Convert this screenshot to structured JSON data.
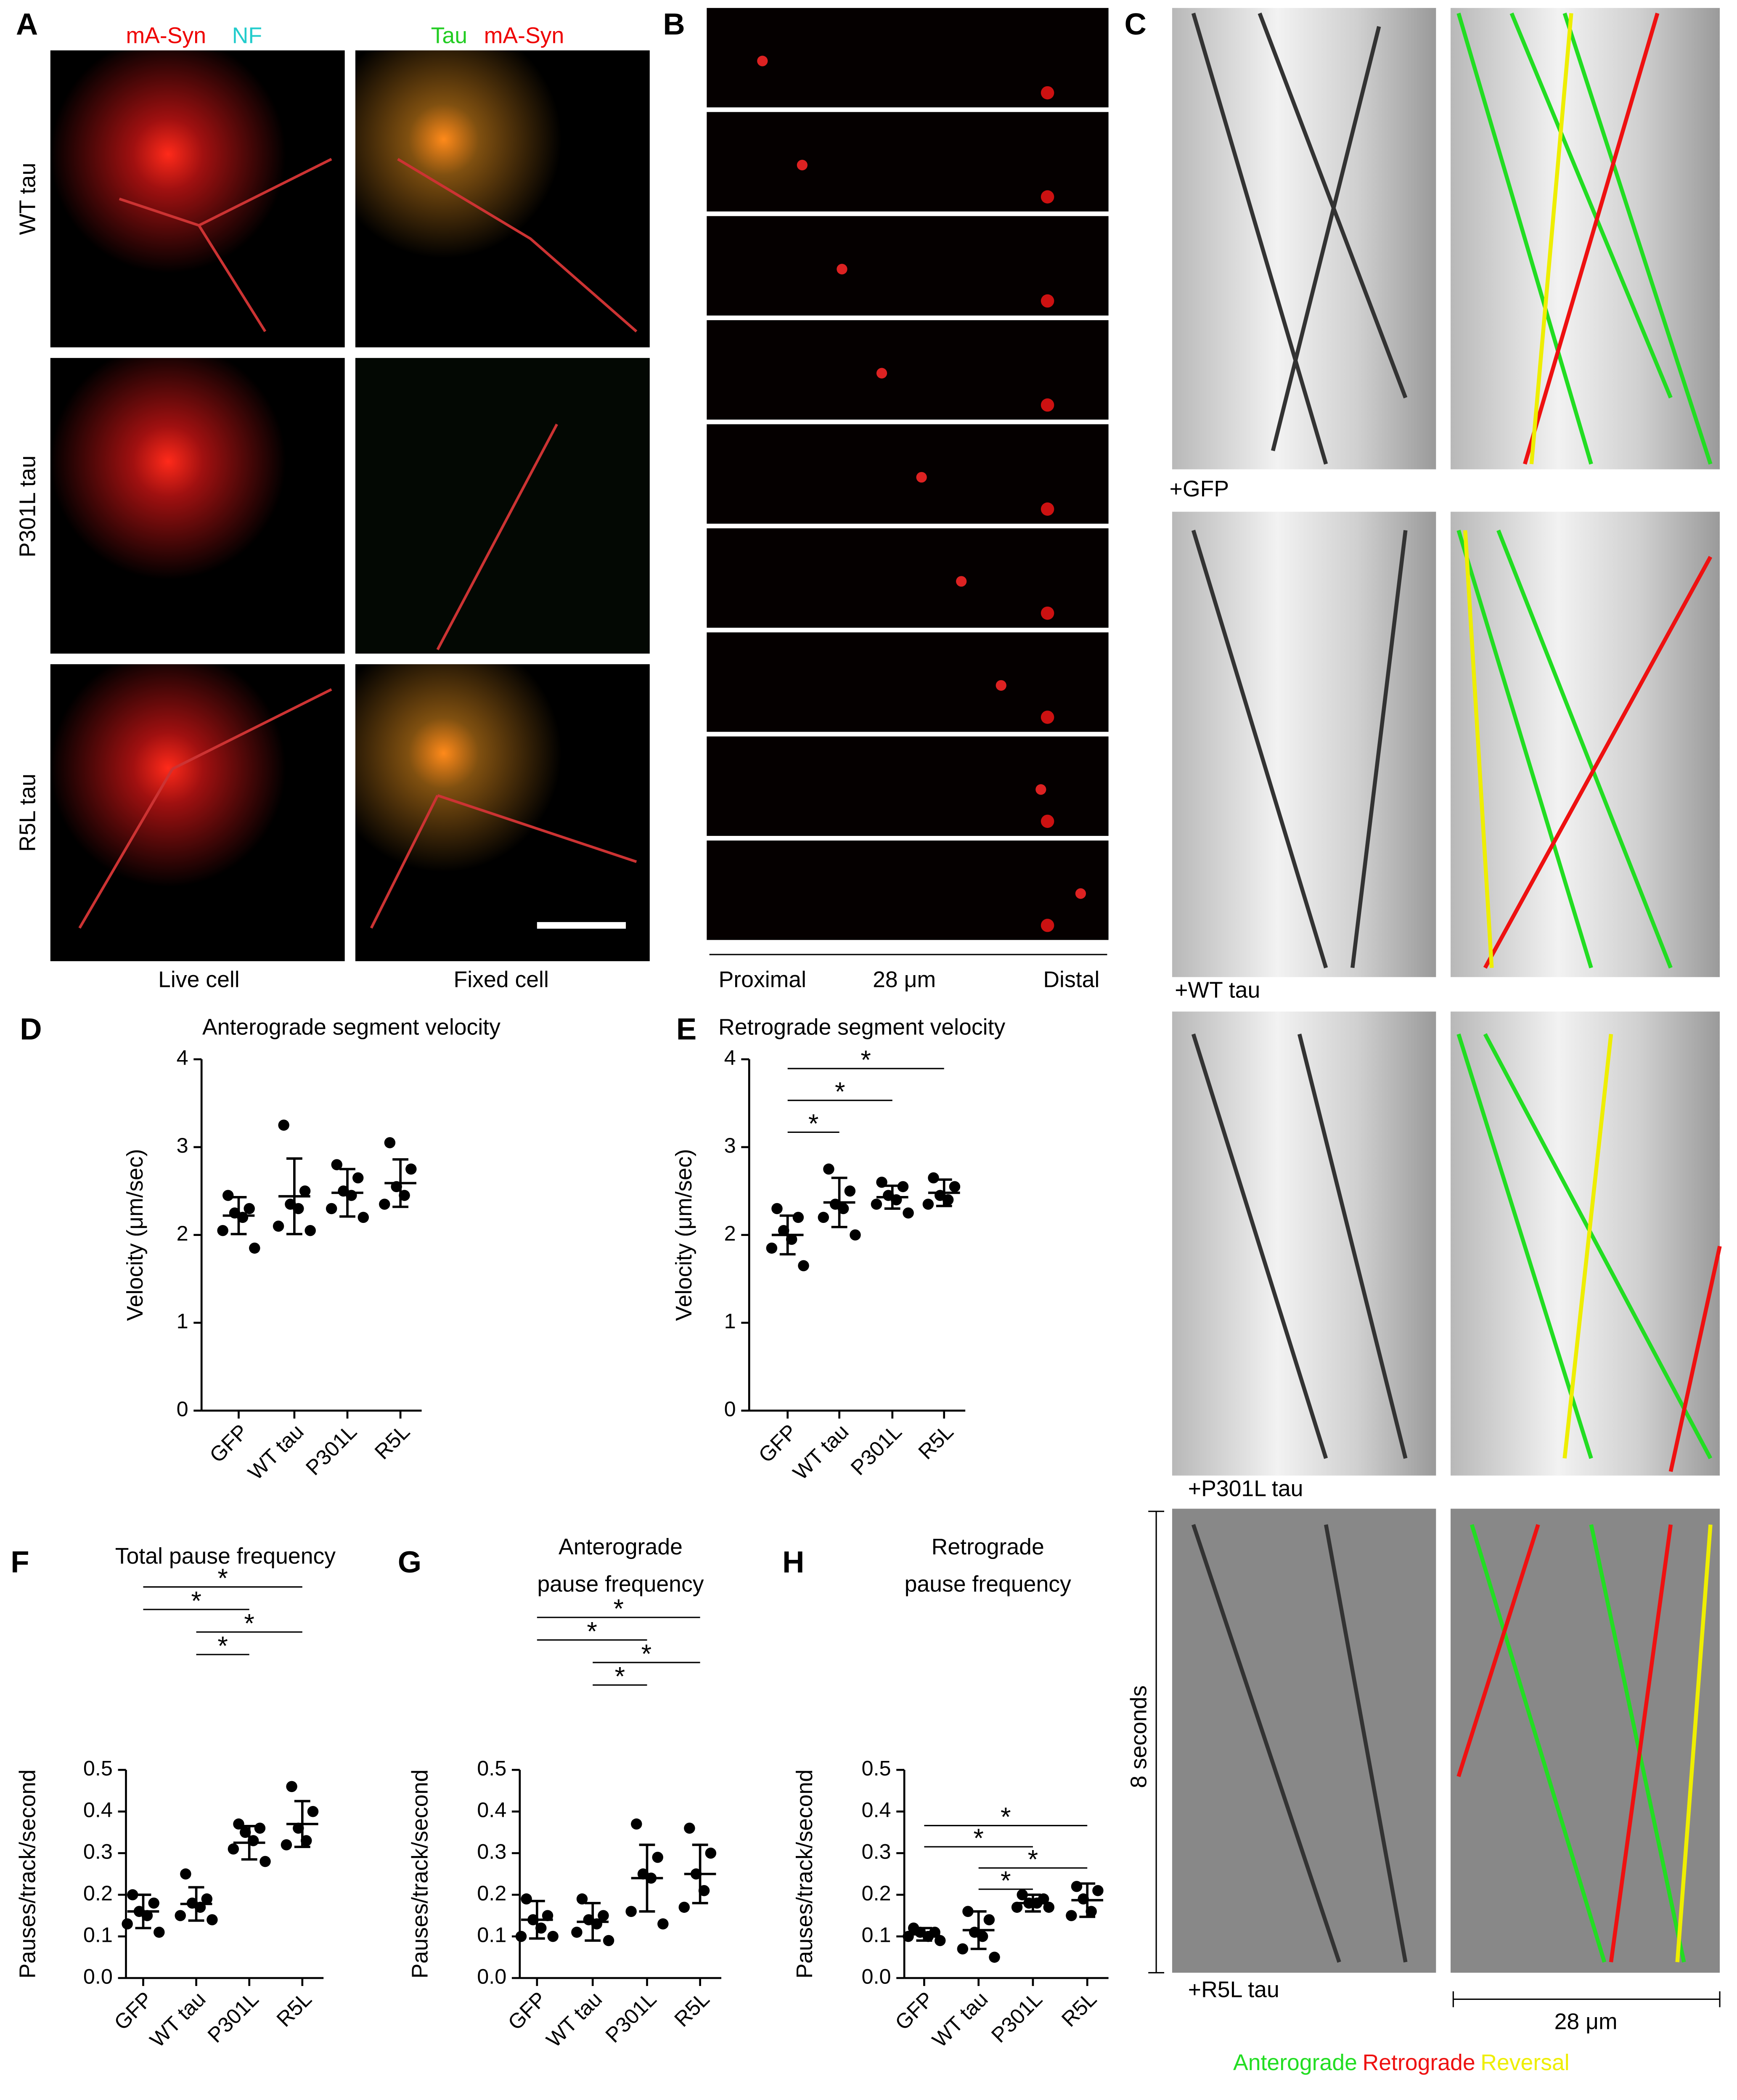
{
  "panel_a": {
    "letter": "A",
    "header_live": [
      "mA-Syn",
      "NF"
    ],
    "header_fixed": [
      "Tau",
      "mA-Syn"
    ],
    "row_labels": [
      "WT tau",
      "P301L tau",
      "R5L tau"
    ],
    "column_labels": [
      "Live cell",
      "Fixed cell"
    ]
  },
  "panel_b": {
    "letter": "B",
    "axis_labels": [
      "Proximal",
      "28 μm",
      "Distal"
    ]
  },
  "panel_c": {
    "letter": "C",
    "row_labels": [
      "+GFP",
      "+WT tau",
      "+P301L tau",
      "+R5L tau"
    ],
    "time_label": "8 seconds",
    "scale_label": "28 μm",
    "legend": [
      {
        "name": "Anterograde",
        "color": "#22dd22"
      },
      {
        "name": "Retrograde",
        "color": "#ee1111"
      },
      {
        "name": "Reversal",
        "color": "#eeee00"
      }
    ]
  },
  "chart_data": [
    {
      "type": "dotplot",
      "panel": "D",
      "title": "Anterograde segment velocity",
      "y_label": "Velocity (μm/sec)",
      "categories": [
        "GFP",
        "WT tau",
        "P301L",
        "R5L"
      ],
      "color": "#000000",
      "points": [
        [
          2.45,
          2.3,
          2.25,
          2.2,
          2.05,
          1.85
        ],
        [
          3.25,
          2.5,
          2.35,
          2.3,
          2.1,
          2.05
        ],
        [
          2.8,
          2.65,
          2.5,
          2.45,
          2.3,
          2.2
        ],
        [
          3.05,
          2.75,
          2.55,
          2.45,
          2.35
        ]
      ],
      "means": [
        2.22,
        2.44,
        2.48,
        2.59
      ],
      "sds": [
        0.21,
        0.43,
        0.27,
        0.27
      ],
      "ylim": [
        0,
        4
      ],
      "yticks": [
        0,
        1,
        2,
        3,
        4
      ],
      "significance": []
    },
    {
      "type": "dotplot",
      "panel": "E",
      "title": "Retrograde segment velocity",
      "y_label": "Velocity (μm/sec)",
      "categories": [
        "GFP",
        "WT tau",
        "P301L",
        "R5L"
      ],
      "color": "#000000",
      "points": [
        [
          2.3,
          2.2,
          2.05,
          1.95,
          1.85,
          1.65
        ],
        [
          2.75,
          2.5,
          2.35,
          2.3,
          2.2,
          2.0
        ],
        [
          2.6,
          2.55,
          2.45,
          2.4,
          2.35,
          2.25
        ],
        [
          2.65,
          2.55,
          2.45,
          2.4,
          2.35
        ]
      ],
      "means": [
        2.0,
        2.37,
        2.43,
        2.48
      ],
      "sds": [
        0.22,
        0.28,
        0.13,
        0.15
      ],
      "ylim": [
        0,
        4
      ],
      "yticks": [
        0,
        1,
        2,
        3,
        4
      ],
      "significance": [
        {
          "pair": [
            "GFP",
            "R5L"
          ],
          "label": "*"
        },
        {
          "pair": [
            "GFP",
            "P301L"
          ],
          "label": "*"
        },
        {
          "pair": [
            "GFP",
            "WT tau"
          ],
          "label": "*"
        }
      ]
    },
    {
      "type": "dotplot",
      "panel": "F",
      "title": "Total pause frequency",
      "y_label": "Pauses/track/second",
      "categories": [
        "GFP",
        "WT tau",
        "P301L",
        "R5L"
      ],
      "color": "#000000",
      "points": [
        [
          0.2,
          0.18,
          0.16,
          0.15,
          0.13,
          0.11
        ],
        [
          0.25,
          0.19,
          0.18,
          0.17,
          0.15,
          0.14
        ],
        [
          0.37,
          0.36,
          0.35,
          0.33,
          0.31,
          0.28
        ],
        [
          0.46,
          0.4,
          0.36,
          0.33,
          0.32
        ]
      ],
      "means": [
        0.16,
        0.178,
        0.325,
        0.37
      ],
      "sds": [
        0.04,
        0.04,
        0.04,
        0.055
      ],
      "ylim": [
        0,
        0.5
      ],
      "yticks": [
        {
          "value": 0,
          "label": "0.0"
        },
        0.1,
        0.2,
        0.3,
        0.4,
        0.5
      ],
      "significance": [
        {
          "pair": [
            "GFP",
            "R5L"
          ],
          "label": "*"
        },
        {
          "pair": [
            "GFP",
            "P301L"
          ],
          "label": "*"
        },
        {
          "pair": [
            "WT tau",
            "R5L"
          ],
          "label": "*"
        },
        {
          "pair": [
            "WT tau",
            "P301L"
          ],
          "label": "*"
        }
      ]
    },
    {
      "type": "dotplot",
      "panel": "G",
      "title": [
        "Anterograde",
        "pause frequency"
      ],
      "y_label": "Pauses/track/second",
      "categories": [
        "GFP",
        "WT tau",
        "P301L",
        "R5L"
      ],
      "color": "#000000",
      "points": [
        [
          0.19,
          0.15,
          0.14,
          0.12,
          0.1,
          0.1
        ],
        [
          0.19,
          0.15,
          0.14,
          0.13,
          0.11,
          0.09
        ],
        [
          0.37,
          0.29,
          0.25,
          0.24,
          0.16,
          0.13
        ],
        [
          0.36,
          0.3,
          0.25,
          0.21,
          0.17
        ]
      ],
      "means": [
        0.14,
        0.135,
        0.24,
        0.25
      ],
      "sds": [
        0.045,
        0.045,
        0.08,
        0.07
      ],
      "ylim": [
        0,
        0.5
      ],
      "yticks": [
        {
          "value": 0,
          "label": "0.0"
        },
        0.1,
        0.2,
        0.3,
        0.4,
        0.5
      ],
      "significance": [
        {
          "pair": [
            "GFP",
            "R5L"
          ],
          "label": "*"
        },
        {
          "pair": [
            "GFP",
            "P301L"
          ],
          "label": "*"
        },
        {
          "pair": [
            "WT tau",
            "R5L"
          ],
          "label": "*"
        },
        {
          "pair": [
            "WT tau",
            "P301L"
          ],
          "label": "*"
        }
      ]
    },
    {
      "type": "dotplot",
      "panel": "H",
      "title": [
        "Retrograde",
        "pause frequency"
      ],
      "y_label": "Pauses/track/second",
      "categories": [
        "GFP",
        "WT tau",
        "P301L",
        "R5L"
      ],
      "color": "#000000",
      "points": [
        [
          0.12,
          0.11,
          0.11,
          0.1,
          0.1,
          0.09
        ],
        [
          0.16,
          0.14,
          0.11,
          0.1,
          0.07,
          0.05
        ],
        [
          0.2,
          0.19,
          0.18,
          0.18,
          0.17,
          0.17
        ],
        [
          0.22,
          0.21,
          0.19,
          0.16,
          0.15
        ]
      ],
      "means": [
        0.105,
        0.115,
        0.18,
        0.187
      ],
      "sds": [
        0.015,
        0.045,
        0.02,
        0.04
      ],
      "ylim": [
        0,
        0.5
      ],
      "yticks": [
        {
          "value": 0,
          "label": "0.0"
        },
        0.1,
        0.2,
        0.3,
        0.4,
        0.5
      ],
      "significance": [
        {
          "pair": [
            "GFP",
            "R5L"
          ],
          "label": "*"
        },
        {
          "pair": [
            "GFP",
            "P301L"
          ],
          "label": "*"
        },
        {
          "pair": [
            "WT tau",
            "R5L"
          ],
          "label": "*"
        },
        {
          "pair": [
            "WT tau",
            "P301L"
          ],
          "label": "*"
        }
      ]
    }
  ]
}
